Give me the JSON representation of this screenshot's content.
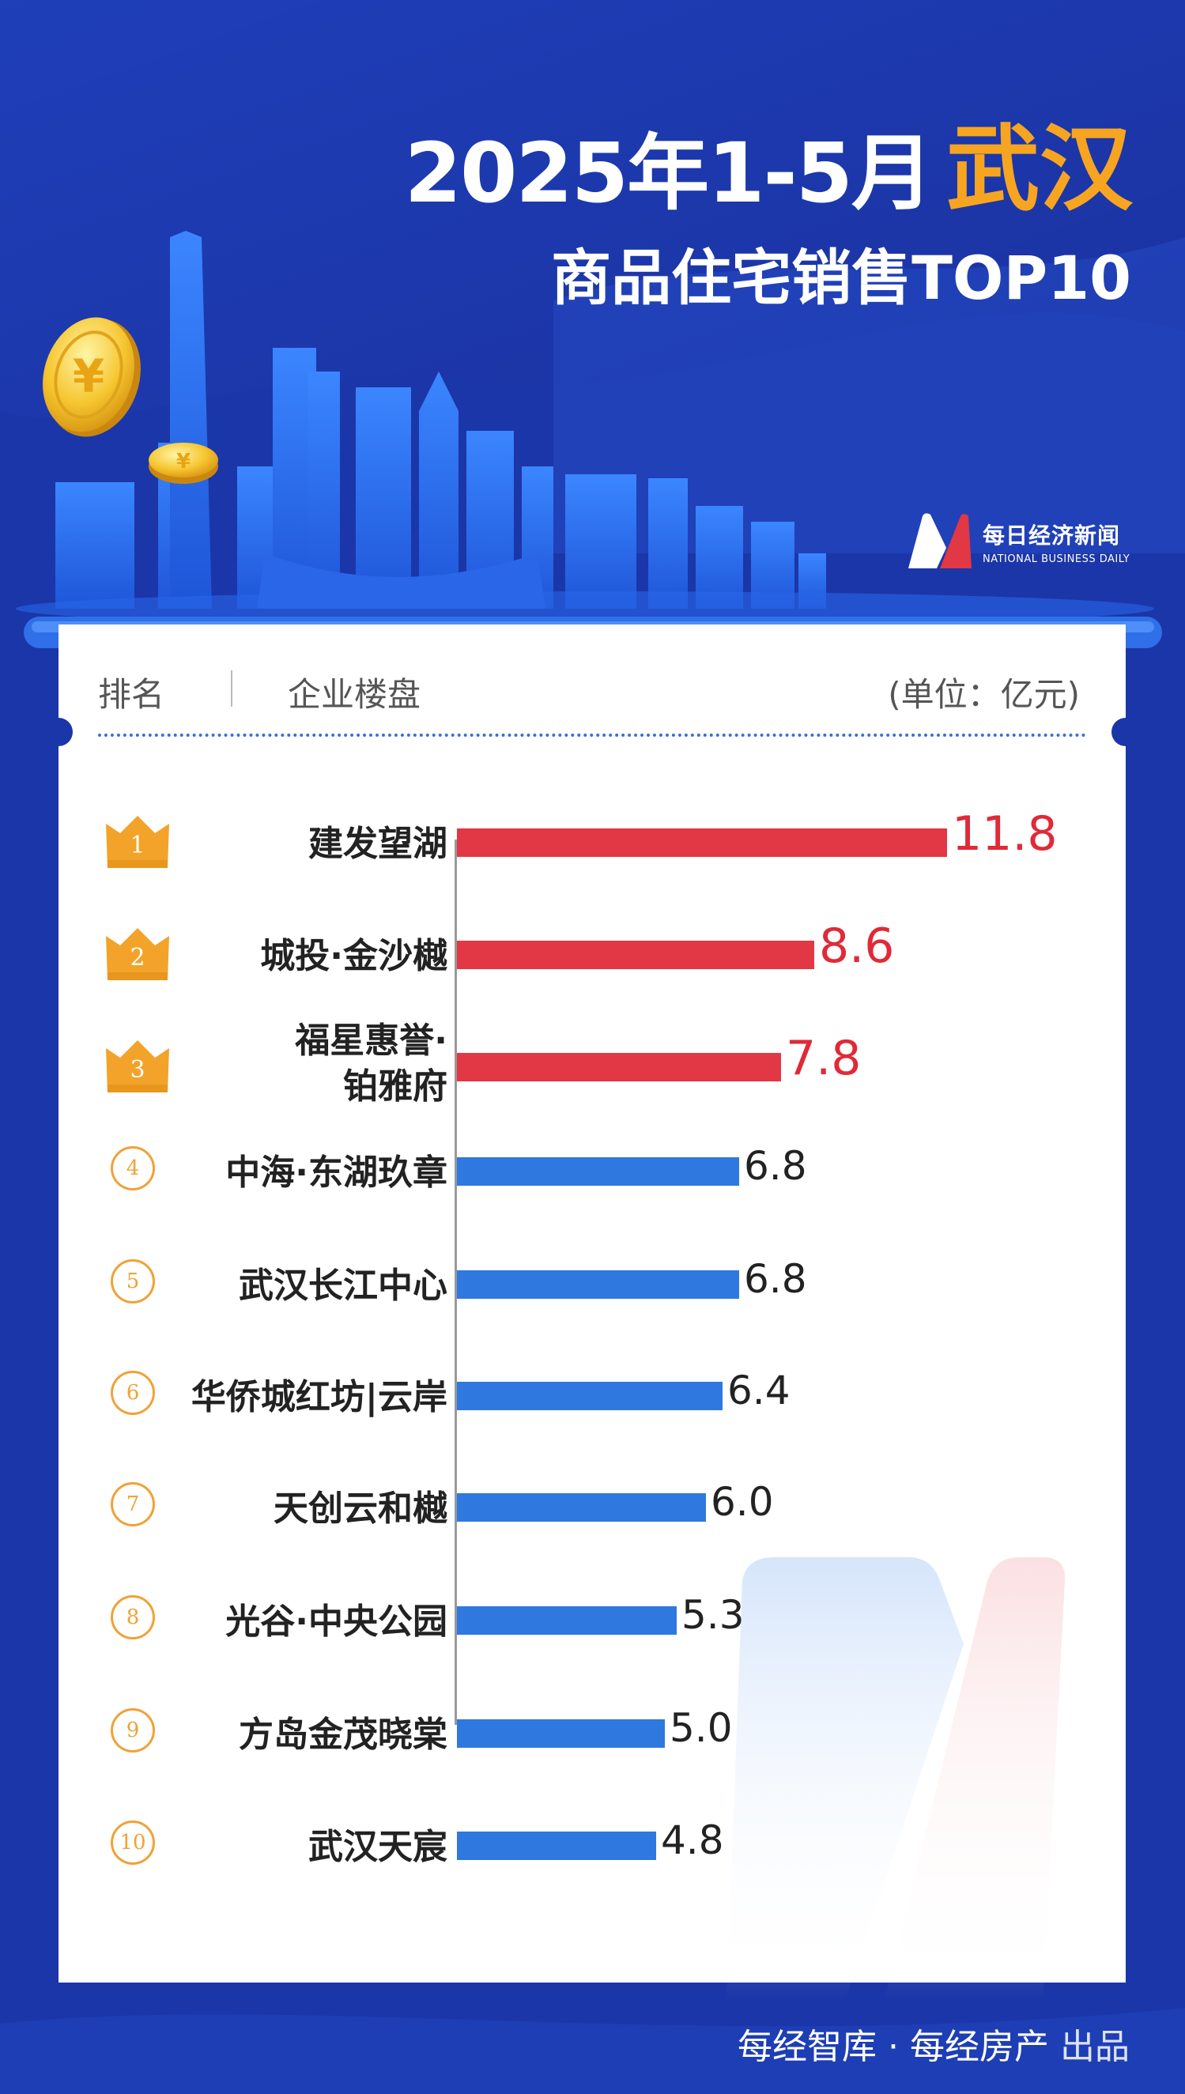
{
  "header": {
    "title_main": "2025年1-5月",
    "title_city": "武汉",
    "subtitle": "商品住宅销售TOP10"
  },
  "logo": {
    "cn": "每日经济新闻",
    "en": "NATIONAL BUSINESS DAILY"
  },
  "table": {
    "col_rank": "排名",
    "col_name": "企业楼盘",
    "unit": "(单位：亿元)"
  },
  "colors": {
    "background": "#1b36a8",
    "top3_bar": "#e23744",
    "other_bar": "#2e78e0",
    "accent": "#f7a521"
  },
  "icons": [
    "crown-badge-icon",
    "yen-coin-icon",
    "skyline-illustration"
  ],
  "chart_data": {
    "type": "bar",
    "orientation": "horizontal",
    "categories": [
      "建发望湖",
      "城投·金沙樾",
      "福星惠誉·\n铂雅府",
      "中海·东湖玖章",
      "武汉长江中心",
      "华侨城红坊|云岸",
      "天创云和樾",
      "光谷·中央公园",
      "方岛金茂晓棠",
      "武汉天宸"
    ],
    "ranks": [
      "1",
      "2",
      "3",
      "4",
      "5",
      "6",
      "7",
      "8",
      "9",
      "10"
    ],
    "values": [
      11.8,
      8.6,
      7.8,
      6.8,
      6.8,
      6.4,
      6.0,
      5.3,
      5.0,
      4.8
    ],
    "value_labels": [
      "11.8",
      "8.6",
      "7.8",
      "6.8",
      "6.8",
      "6.4",
      "6.0",
      "5.3",
      "5.0",
      "4.8"
    ],
    "unit": "亿元",
    "xlim": [
      0,
      11.8
    ],
    "grid": false
  },
  "footer": {
    "credit": "每经智库 · 每经房产",
    "suffix": "出品"
  }
}
